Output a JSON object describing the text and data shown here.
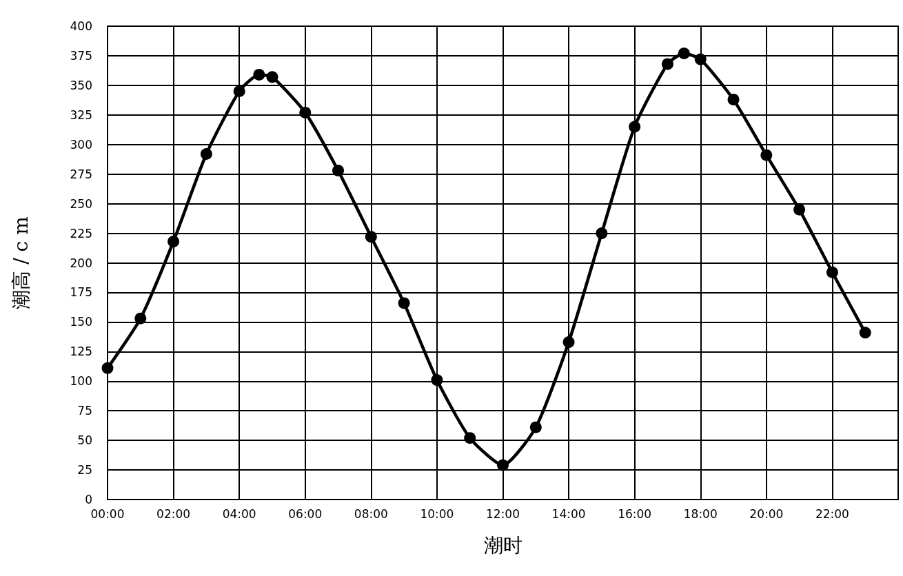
{
  "chart_data": {
    "type": "line",
    "xlabel": "潮时",
    "ylabel": "潮高 / c m",
    "x": [
      0,
      1,
      2,
      3,
      4,
      4.6,
      5,
      6,
      7,
      8,
      9,
      10,
      11,
      12,
      13,
      14,
      15,
      16,
      17,
      17.5,
      18,
      19,
      20,
      21,
      22,
      23
    ],
    "series": [
      {
        "color": "#000000",
        "values": [
          111,
          153,
          218,
          292,
          345,
          359,
          357,
          327,
          278,
          222,
          166,
          101,
          52,
          29,
          61,
          133,
          225,
          315,
          368,
          377,
          372,
          338,
          291,
          245,
          192,
          141
        ]
      }
    ],
    "xlim": [
      0,
      24
    ],
    "ylim": [
      0,
      400
    ],
    "xticks": [
      {
        "value": 0,
        "label": "00:00"
      },
      {
        "value": 2,
        "label": "02:00"
      },
      {
        "value": 4,
        "label": "04:00"
      },
      {
        "value": 6,
        "label": "06:00"
      },
      {
        "value": 8,
        "label": "08:00"
      },
      {
        "value": 10,
        "label": "10:00"
      },
      {
        "value": 12,
        "label": "12:00"
      },
      {
        "value": 14,
        "label": "14:00"
      },
      {
        "value": 16,
        "label": "16:00"
      },
      {
        "value": 18,
        "label": "18:00"
      },
      {
        "value": 20,
        "label": "20:00"
      },
      {
        "value": 22,
        "label": "22:00"
      }
    ],
    "yticks": [
      0,
      25,
      50,
      75,
      100,
      125,
      150,
      175,
      200,
      225,
      250,
      275,
      300,
      325,
      350,
      375,
      400
    ],
    "grid": true,
    "marker": "circle",
    "line_style": "solid"
  }
}
